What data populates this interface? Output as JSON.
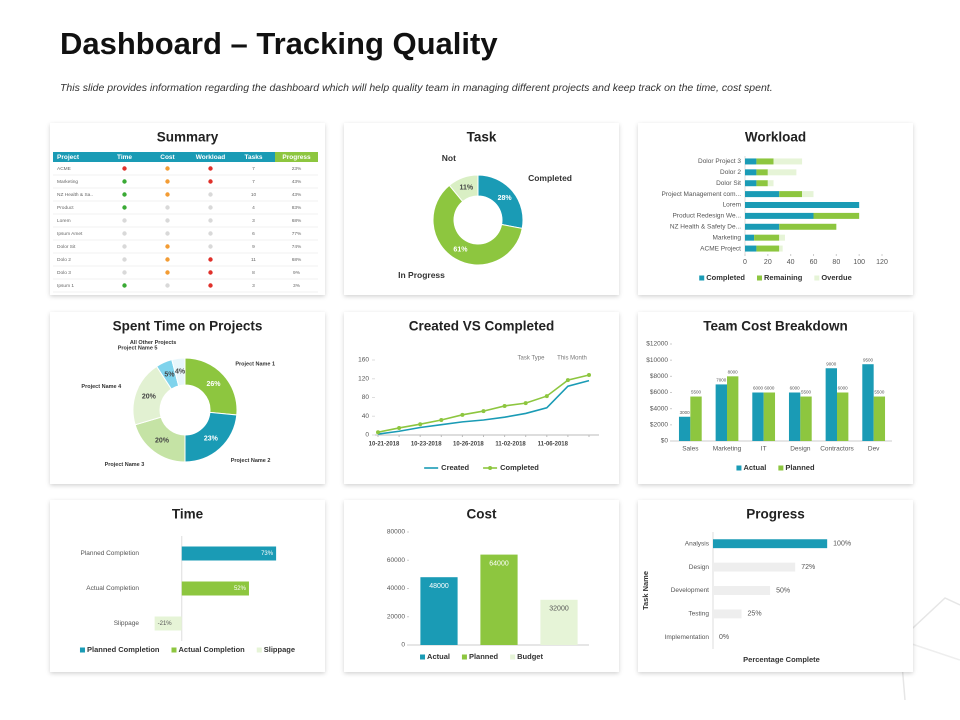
{
  "header": {
    "title": "Dashboard – Tracking Quality",
    "subtitle": "This slide provides information regarding the dashboard which will help quality team in managing different projects and keep track on the time, cost spent."
  },
  "summary": {
    "title": "Summary",
    "columns": [
      "Project",
      "Time",
      "Cost",
      "Workload",
      "Tasks",
      "Progress"
    ],
    "header_colors": [
      "#1a9bb5",
      "#1a9bb5",
      "#1a9bb5",
      "#1a9bb5",
      "#1a9bb5",
      "#8dc63f"
    ],
    "rows": [
      [
        "ACME",
        "#e0312b",
        "#f39c34",
        "#e0312b",
        7,
        "23%"
      ],
      [
        "Marketing",
        "#3aaa35",
        "#f39c34",
        "#e0312b",
        7,
        "43%"
      ],
      [
        "NZ Health & Sa..",
        "#3aaa35",
        "#f39c34",
        "#d9d9d9",
        10,
        "43%"
      ],
      [
        "Product",
        "#3aaa35",
        "#d9d9d9",
        "#d9d9d9",
        4,
        "83%"
      ],
      [
        "Lorem",
        "#d9d9d9",
        "#d9d9d9",
        "#d9d9d9",
        3,
        "68%"
      ],
      [
        "Ipsum Amet",
        "#d9d9d9",
        "#d9d9d9",
        "#d9d9d9",
        6,
        "77%"
      ],
      [
        "Dolor Sit",
        "#d9d9d9",
        "#f39c34",
        "#d9d9d9",
        9,
        "74%"
      ],
      [
        "Dolo 2",
        "#d9d9d9",
        "#f39c34",
        "#e0312b",
        11,
        "68%"
      ],
      [
        "Dolo 3",
        "#d9d9d9",
        "#f39c34",
        "#e0312b",
        8,
        "9%"
      ],
      [
        "Ipsum 1",
        "#3aaa35",
        "#d9d9d9",
        "#e0312b",
        3,
        "3%"
      ]
    ]
  },
  "chart_data": [
    {
      "type": "donut",
      "title": "Task",
      "categories": [
        "Completed",
        "In Progress",
        "Not"
      ],
      "values": [
        28,
        61,
        11
      ],
      "value_labels": [
        "28%",
        "61%",
        "11%"
      ],
      "colors": [
        "#1a9bb5",
        "#8dc63f",
        "#d9efc4"
      ]
    },
    {
      "type": "bar",
      "title": "Workload",
      "orientation": "horizontal",
      "stacked": true,
      "categories": [
        "Dolor Project 3",
        "Dolor 2",
        "Dolor Sit",
        "Project Management com...",
        "Lorem",
        "Product Redesign We...",
        "NZ Health & Safety De...",
        "Marketing",
        "ACME Project"
      ],
      "series": [
        {
          "name": "Completed",
          "color": "#1a9bb5",
          "values": [
            10,
            10,
            10,
            30,
            100,
            60,
            30,
            8,
            10
          ]
        },
        {
          "name": "Remaining",
          "color": "#8dc63f",
          "values": [
            15,
            10,
            10,
            20,
            0,
            40,
            50,
            22,
            20
          ]
        },
        {
          "name": "Overdue",
          "color": "#e6f4d7",
          "values": [
            25,
            25,
            5,
            10,
            0,
            0,
            0,
            5,
            3
          ]
        }
      ],
      "xlim": [
        0,
        120
      ],
      "xticks": [
        0,
        20,
        40,
        60,
        80,
        100,
        120
      ],
      "legend": true
    },
    {
      "type": "donut",
      "title": "Spent Time on Projects",
      "categories": [
        "Project Name 1",
        "Project Name 2",
        "Project Name 3",
        "Project Name 4",
        "Project Name 5",
        "All Other Projects"
      ],
      "values": [
        26,
        23,
        20,
        20,
        5,
        4
      ],
      "value_labels": [
        "26%",
        "23%",
        "20%",
        "20%",
        "5%",
        "4%"
      ],
      "colors": [
        "#8dc63f",
        "#1a9bb5",
        "#c5e3a5",
        "#e2f1d2",
        "#7fd3ec",
        "#e8f6fb"
      ]
    },
    {
      "type": "line",
      "title": "Created VS Completed",
      "categories": [
        "10-21-2018",
        null,
        "10-23-2018",
        null,
        "10-26-2018",
        null,
        "11-02-2018",
        null,
        "11-06-2018",
        null,
        null
      ],
      "series": [
        {
          "name": "Created",
          "color": "#1a9bb5",
          "markers": false,
          "values": [
            2,
            8,
            16,
            22,
            28,
            32,
            38,
            46,
            58,
            104,
            116
          ]
        },
        {
          "name": "Completed",
          "color": "#8dc63f",
          "markers": true,
          "values": [
            6,
            15,
            23,
            32,
            43,
            51,
            62,
            68,
            83,
            117,
            128
          ]
        }
      ],
      "ylim": [
        0,
        160
      ],
      "yticks": [
        0,
        40,
        80,
        120,
        160
      ],
      "annotations": [
        "Task Type",
        "This Month"
      ],
      "legend": true
    },
    {
      "type": "bar",
      "title": "Team Cost Breakdown",
      "categories": [
        "Sales",
        "Marketing",
        "IT",
        "Design",
        "Contractors",
        "Dev"
      ],
      "series": [
        {
          "name": "Actual",
          "color": "#1a9bb5",
          "values": [
            3000,
            7000,
            6000,
            6000,
            9000,
            9500
          ]
        },
        {
          "name": "Planned",
          "color": "#8dc63f",
          "values": [
            5500,
            8000,
            6000,
            5500,
            6000,
            5500
          ]
        }
      ],
      "ylim": [
        0,
        12000
      ],
      "yticks": [
        {
          "value": 0,
          "label": "$0"
        },
        {
          "value": 2000,
          "label": "$2000"
        },
        {
          "value": 4000,
          "label": "$4000"
        },
        {
          "value": 6000,
          "label": "$6000"
        },
        {
          "value": 8000,
          "label": "$8000"
        },
        {
          "value": 10000,
          "label": "$10000"
        },
        {
          "value": 12000,
          "label": "$12000"
        }
      ],
      "show_values": true,
      "legend": true
    },
    {
      "type": "bar",
      "title": "Time",
      "orientation": "horizontal",
      "categories": [
        "Planned Completion",
        "Actual Completion",
        "Slippage"
      ],
      "values": [
        73,
        52,
        -21
      ],
      "value_labels": [
        "73%",
        "52%",
        "-21%"
      ],
      "colors": [
        "#1a9bb5",
        "#8dc63f",
        "#e6f4d7"
      ],
      "xlim": [
        -30,
        100
      ],
      "legend": true
    },
    {
      "type": "bar",
      "title": "Cost",
      "categories": [
        "Actual",
        "Planned",
        "Budget"
      ],
      "values": [
        48000,
        64000,
        32000
      ],
      "colors": [
        "#1a9bb5",
        "#8dc63f",
        "#e6f4d7"
      ],
      "ylim": [
        0,
        80000
      ],
      "yticks": [
        0,
        20000,
        40000,
        60000,
        80000
      ],
      "show_values": true,
      "category_labels": false,
      "legend": true
    },
    {
      "type": "bar",
      "title": "Progress",
      "orientation": "horizontal",
      "categories": [
        "Analysis",
        "Design",
        "Development",
        "Testing",
        "Implementation"
      ],
      "values": [
        100,
        72,
        50,
        25,
        0
      ],
      "value_labels": [
        "100%",
        "72%",
        "50%",
        "25%",
        "0%"
      ],
      "colors": [
        "#1a9bb5",
        "#eeeeee",
        "#eeeeee",
        "#eeeeee",
        "#eeeeee"
      ],
      "xlim": [
        0,
        120
      ],
      "xlabel": "Percentage Complete",
      "ylabel": "Task Name"
    }
  ]
}
